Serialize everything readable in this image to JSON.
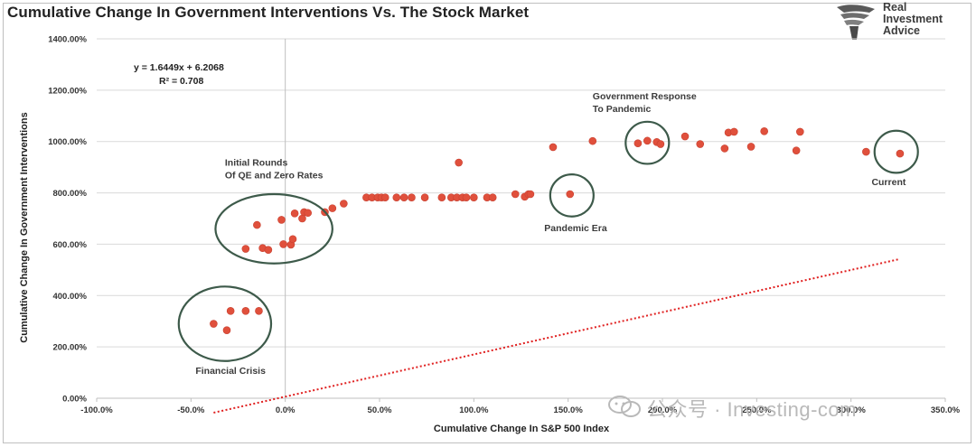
{
  "header": {
    "title": "Cumulative Change In Government Interventions Vs. The Stock Market",
    "logo_lines": [
      "Real",
      "Investment",
      "Advice"
    ]
  },
  "watermark": {
    "text": "公众号 · Investing-com"
  },
  "colors": {
    "points": "#e0503c",
    "trend": "#e02020",
    "ellipse": "#3d5a4a",
    "grid": "#d9d9d9"
  },
  "chart_data": {
    "type": "scatter",
    "title": "Cumulative Change In Government Interventions Vs. The Stock Market",
    "xlabel": "Cumulative Change In S&P 500 Index",
    "ylabel": "Cumulative Change In Government Interventions",
    "xlim": [
      -100,
      350
    ],
    "ylim": [
      0,
      1400
    ],
    "x_ticks": [
      -100,
      -50,
      0,
      50,
      100,
      150,
      200,
      250,
      300,
      350
    ],
    "x_tick_labels": [
      "-100.0%",
      "-50.0%",
      "0.0%",
      "50.0%",
      "100.0%",
      "150.0%",
      "200.0%",
      "250.0%",
      "300.0%",
      "350.0%"
    ],
    "y_ticks": [
      0,
      200,
      400,
      600,
      800,
      1000,
      1200,
      1400
    ],
    "y_tick_labels": [
      "0.00%",
      "200.00%",
      "400.00%",
      "600.00%",
      "800.00%",
      "1000.00%",
      "1200.00%",
      "1400.00%"
    ],
    "grid": "horizontal",
    "trendline": {
      "slope": 1.6449,
      "intercept": 6.2068,
      "x_range": [
        -38,
        325
      ],
      "style": "dotted"
    },
    "equation_lines": [
      "y = 1.6449x + 6.2068",
      "R² = 0.708"
    ],
    "points": [
      {
        "x": -38,
        "y": 290
      },
      {
        "x": -31,
        "y": 265
      },
      {
        "x": -29,
        "y": 340
      },
      {
        "x": -21,
        "y": 340
      },
      {
        "x": -14,
        "y": 340
      },
      {
        "x": -21,
        "y": 582
      },
      {
        "x": -12,
        "y": 585
      },
      {
        "x": -9,
        "y": 578
      },
      {
        "x": -15,
        "y": 675
      },
      {
        "x": -1,
        "y": 600
      },
      {
        "x": 3,
        "y": 598
      },
      {
        "x": 4,
        "y": 620
      },
      {
        "x": -2,
        "y": 695
      },
      {
        "x": 5,
        "y": 720
      },
      {
        "x": 9,
        "y": 700
      },
      {
        "x": 10,
        "y": 725
      },
      {
        "x": 12,
        "y": 722
      },
      {
        "x": 21,
        "y": 725
      },
      {
        "x": 25,
        "y": 740
      },
      {
        "x": 31,
        "y": 758
      },
      {
        "x": 43,
        "y": 782
      },
      {
        "x": 46,
        "y": 782
      },
      {
        "x": 49,
        "y": 782
      },
      {
        "x": 51,
        "y": 782
      },
      {
        "x": 53,
        "y": 782
      },
      {
        "x": 59,
        "y": 782
      },
      {
        "x": 63,
        "y": 782
      },
      {
        "x": 67,
        "y": 782
      },
      {
        "x": 74,
        "y": 782
      },
      {
        "x": 83,
        "y": 782
      },
      {
        "x": 88,
        "y": 782
      },
      {
        "x": 91,
        "y": 782
      },
      {
        "x": 94,
        "y": 782
      },
      {
        "x": 96,
        "y": 782
      },
      {
        "x": 100,
        "y": 782
      },
      {
        "x": 92,
        "y": 918
      },
      {
        "x": 107,
        "y": 782
      },
      {
        "x": 110,
        "y": 782
      },
      {
        "x": 122,
        "y": 795
      },
      {
        "x": 127,
        "y": 785
      },
      {
        "x": 129,
        "y": 795
      },
      {
        "x": 130,
        "y": 795
      },
      {
        "x": 142,
        "y": 978
      },
      {
        "x": 151,
        "y": 795
      },
      {
        "x": 163,
        "y": 1002
      },
      {
        "x": 187,
        "y": 993
      },
      {
        "x": 192,
        "y": 1003
      },
      {
        "x": 197,
        "y": 998
      },
      {
        "x": 199,
        "y": 990
      },
      {
        "x": 212,
        "y": 1020
      },
      {
        "x": 220,
        "y": 990
      },
      {
        "x": 233,
        "y": 973
      },
      {
        "x": 235,
        "y": 1035
      },
      {
        "x": 238,
        "y": 1038
      },
      {
        "x": 247,
        "y": 980
      },
      {
        "x": 254,
        "y": 1040
      },
      {
        "x": 271,
        "y": 965
      },
      {
        "x": 273,
        "y": 1038
      },
      {
        "x": 308,
        "y": 960
      },
      {
        "x": 326,
        "y": 953
      }
    ],
    "annotations": [
      {
        "lines": [
          "Financial Crisis"
        ],
        "x": -29,
        "y": 95,
        "anchor": "middle"
      },
      {
        "lines": [
          "Initial Rounds",
          "Of QE and Zero Rates"
        ],
        "x": -32,
        "y": 905,
        "anchor": "start"
      },
      {
        "lines": [
          "Pandemic Era"
        ],
        "x": 154,
        "y": 650,
        "anchor": "middle"
      },
      {
        "lines": [
          "Government Response",
          "To Pandemic"
        ],
        "x": 163,
        "y": 1165,
        "anchor": "start"
      },
      {
        "lines": [
          "Current"
        ],
        "x": 320,
        "y": 830,
        "anchor": "middle"
      }
    ],
    "highlights": [
      {
        "label": "Financial Crisis",
        "cx": -32,
        "cy": 290,
        "rx": 24.5,
        "ry": 145
      },
      {
        "label": "Initial Rounds Of QE and Zero Rates",
        "cx": -6,
        "cy": 660,
        "rx": 31,
        "ry": 135
      },
      {
        "label": "Pandemic Era",
        "cx": 152,
        "cy": 790,
        "rx": 11.5,
        "ry": 82
      },
      {
        "label": "Government Response To Pandemic",
        "cx": 192,
        "cy": 995,
        "rx": 11.5,
        "ry": 82
      },
      {
        "label": "Current",
        "cx": 324,
        "cy": 960,
        "rx": 11.5,
        "ry": 82
      }
    ]
  }
}
